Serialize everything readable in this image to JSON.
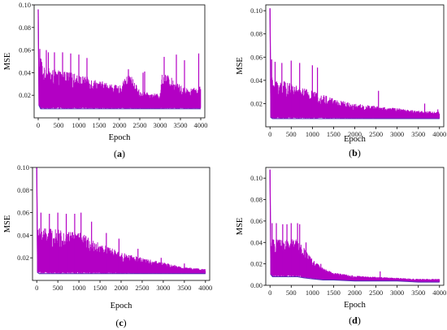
{
  "colors": {
    "signal": "#b300c4",
    "trace": "#5a2db8",
    "axis": "#000000",
    "background": "#ffffff"
  },
  "chart_data": [
    {
      "type": "line",
      "panel_label": "(a)",
      "xlabel": "Epoch",
      "ylabel": "MSE",
      "xlim": [
        -100,
        4100
      ],
      "ylim": [
        0,
        0.1
      ],
      "xticks": [
        0,
        500,
        1000,
        1500,
        2000,
        2500,
        3000,
        3500,
        4000
      ],
      "yticks": [
        0.02,
        0.04,
        0.06,
        0.08,
        0.1
      ],
      "ytick_labels": [
        "0.02",
        "0.04",
        "0.06",
        "0.08",
        "0.10"
      ],
      "grid": false,
      "series": [
        {
          "x": [
            0,
            20,
            60,
            120,
            250,
            500,
            750,
            1000,
            1250,
            1500,
            1750,
            2000,
            2100,
            2250,
            2500,
            2750,
            3000,
            3050,
            3200,
            3500,
            3750,
            4000
          ],
          "lo": [
            0.096,
            0.011,
            0.008,
            0.008,
            0.008,
            0.008,
            0.008,
            0.008,
            0.008,
            0.008,
            0.008,
            0.008,
            0.008,
            0.008,
            0.008,
            0.008,
            0.008,
            0.008,
            0.008,
            0.008,
            0.008,
            0.008
          ],
          "hi": [
            0.096,
            0.045,
            0.058,
            0.045,
            0.044,
            0.042,
            0.041,
            0.038,
            0.036,
            0.033,
            0.031,
            0.028,
            0.033,
            0.04,
            0.024,
            0.022,
            0.021,
            0.04,
            0.038,
            0.029,
            0.026,
            0.028
          ],
          "spikes": [
            [
              40,
              0.061
            ],
            [
              200,
              0.06
            ],
            [
              250,
              0.058
            ],
            [
              400,
              0.058
            ],
            [
              600,
              0.058
            ],
            [
              800,
              0.057
            ],
            [
              1000,
              0.056
            ],
            [
              1200,
              0.053
            ],
            [
              2220,
              0.043
            ],
            [
              2580,
              0.04
            ],
            [
              2620,
              0.041
            ],
            [
              3100,
              0.054
            ],
            [
              3400,
              0.056
            ],
            [
              3600,
              0.051
            ],
            [
              3950,
              0.057
            ]
          ]
        }
      ]
    },
    {
      "type": "line",
      "panel_label": "(b)",
      "xlabel": "Epoch",
      "ylabel": "MSE",
      "xlim": [
        -100,
        4100
      ],
      "ylim": [
        0,
        0.105
      ],
      "xticks": [
        0,
        500,
        1000,
        1500,
        2000,
        2500,
        3000,
        3500,
        4000
      ],
      "yticks": [
        0.02,
        0.04,
        0.06,
        0.08,
        0.1
      ],
      "ytick_labels": [
        "0.02",
        "0.04",
        "0.06",
        "0.08",
        "0.10"
      ],
      "grid": false,
      "series": [
        {
          "x": [
            0,
            20,
            60,
            150,
            300,
            500,
            750,
            1000,
            1250,
            1500,
            1750,
            2000,
            2500,
            3000,
            3500,
            4000
          ],
          "lo": [
            0.102,
            0.008,
            0.007,
            0.007,
            0.007,
            0.007,
            0.007,
            0.007,
            0.007,
            0.007,
            0.007,
            0.007,
            0.007,
            0.007,
            0.007,
            0.007
          ],
          "hi": [
            0.102,
            0.042,
            0.043,
            0.041,
            0.04,
            0.037,
            0.034,
            0.031,
            0.028,
            0.025,
            0.022,
            0.02,
            0.018,
            0.016,
            0.014,
            0.013
          ],
          "spikes": [
            [
              40,
              0.058
            ],
            [
              120,
              0.056
            ],
            [
              280,
              0.055
            ],
            [
              500,
              0.057
            ],
            [
              700,
              0.055
            ],
            [
              1000,
              0.053
            ],
            [
              1120,
              0.051
            ],
            [
              2560,
              0.031
            ],
            [
              3650,
              0.02
            ],
            [
              3960,
              0.015
            ]
          ]
        }
      ]
    },
    {
      "type": "line",
      "panel_label": "(c)",
      "xlabel": "Epoch",
      "ylabel": "MSE",
      "xlim": [
        -100,
        4100
      ],
      "ylim": [
        0,
        0.1
      ],
      "xticks": [
        0,
        500,
        1000,
        1500,
        2000,
        2500,
        3000,
        3500,
        4000
      ],
      "yticks": [
        0.02,
        0.04,
        0.06,
        0.08,
        0.1
      ],
      "ytick_labels": [
        "0.02",
        "0.04",
        "0.06",
        "0.08",
        "0.10"
      ],
      "grid": false,
      "series": [
        {
          "x": [
            0,
            20,
            60,
            150,
            300,
            500,
            750,
            1000,
            1150,
            1250,
            1500,
            1750,
            2000,
            2500,
            3000,
            3500,
            4000
          ],
          "lo": [
            0.101,
            0.007,
            0.006,
            0.006,
            0.006,
            0.006,
            0.006,
            0.006,
            0.006,
            0.006,
            0.006,
            0.006,
            0.006,
            0.006,
            0.006,
            0.006,
            0.006
          ],
          "hi": [
            0.101,
            0.052,
            0.047,
            0.046,
            0.046,
            0.045,
            0.044,
            0.043,
            0.04,
            0.037,
            0.033,
            0.029,
            0.025,
            0.02,
            0.016,
            0.012,
            0.01
          ],
          "spikes": [
            [
              100,
              0.06
            ],
            [
              300,
              0.059
            ],
            [
              500,
              0.06
            ],
            [
              700,
              0.059
            ],
            [
              900,
              0.059
            ],
            [
              1050,
              0.06
            ],
            [
              1300,
              0.052
            ],
            [
              1650,
              0.042
            ],
            [
              1950,
              0.037
            ],
            [
              2400,
              0.028
            ],
            [
              2950,
              0.02
            ],
            [
              3500,
              0.015
            ]
          ]
        }
      ]
    },
    {
      "type": "line",
      "panel_label": "(d)",
      "xlabel": "Epoch",
      "ylabel": "MSE",
      "xlim": [
        -100,
        4100
      ],
      "ylim": [
        0,
        0.11
      ],
      "xticks": [
        0,
        500,
        1000,
        1500,
        2000,
        2500,
        3000,
        3500,
        4000
      ],
      "yticks": [
        0,
        0.02,
        0.04,
        0.06,
        0.08,
        0.1
      ],
      "ytick_labels": [
        "0.00",
        "0.02",
        "0.04",
        "0.06",
        "0.08",
        "0.10"
      ],
      "grid": false,
      "series": [
        {
          "x": [
            0,
            20,
            60,
            150,
            300,
            500,
            650,
            800,
            1000,
            1250,
            1500,
            2000,
            2500,
            3000,
            3500,
            4000
          ],
          "lo": [
            0.108,
            0.01,
            0.008,
            0.008,
            0.008,
            0.008,
            0.008,
            0.007,
            0.006,
            0.005,
            0.005,
            0.004,
            0.004,
            0.004,
            0.003,
            0.003
          ],
          "hi": [
            0.108,
            0.042,
            0.043,
            0.043,
            0.043,
            0.043,
            0.043,
            0.035,
            0.025,
            0.016,
            0.012,
            0.009,
            0.008,
            0.007,
            0.006,
            0.006
          ],
          "spikes": [
            [
              50,
              0.058
            ],
            [
              150,
              0.058
            ],
            [
              300,
              0.057
            ],
            [
              400,
              0.057
            ],
            [
              500,
              0.058
            ],
            [
              650,
              0.058
            ],
            [
              700,
              0.057
            ],
            [
              850,
              0.04
            ],
            [
              1200,
              0.02
            ],
            [
              2600,
              0.013
            ]
          ]
        }
      ]
    }
  ]
}
